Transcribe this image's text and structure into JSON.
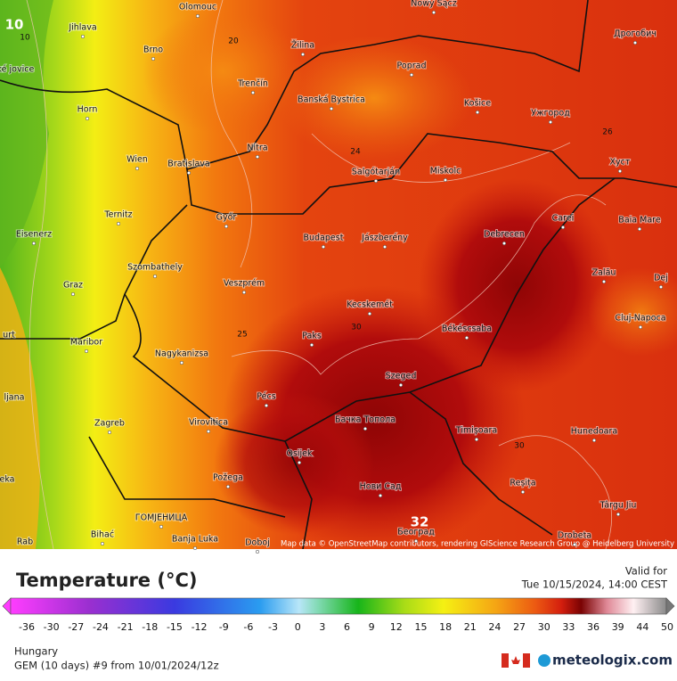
{
  "map": {
    "cities": [
      "Olomouc",
      "Nowy Sącz",
      "Jihlava",
      "Brno",
      "Žilina",
      "Poprad",
      "Дрогобич",
      "Trenčín",
      "Banská Bystrica",
      "Košice",
      "Ужгород",
      "Horn",
      "Wien",
      "Bratislava",
      "Nitra",
      "Salgótarján",
      "Miskolc",
      "Хуст",
      "Ternitz",
      "Győr",
      "Carei",
      "Baia Mare",
      "Eisenerz",
      "Budapest",
      "Jászberény",
      "Debrecen",
      "Szombathely",
      "Zalău",
      "Graz",
      "Veszprém",
      "Dej",
      "Kecskemét",
      "Cluj-Napoca",
      "Maribor",
      "Paks",
      "Békéscsaba",
      "Nagykanizsa",
      "Szeged",
      "Pécs",
      "Бачка Топола",
      "Zagreb",
      "Virovitica",
      "Timișoara",
      "Hunedoara",
      "Osijek",
      "Reșița",
      "Požega",
      "Нови Сад",
      "Târgu Jiu",
      "ГОМЈЕНИЦА",
      "Београд",
      "Bihać",
      "Banja Luka",
      "Doboj",
      "Drobeta",
      "eské jovice",
      "urt",
      "ljana",
      "eka",
      "Rab"
    ],
    "contour_labels": [
      10,
      10,
      20,
      24,
      26,
      25,
      30,
      30,
      32
    ],
    "attribution": "Map data © OpenStreetMap contributors, rendering GIScience Research Group @ Heidelberg University"
  },
  "legend": {
    "title": "Temperature (°C)",
    "valid_label": "Valid for",
    "valid_time": "Tue 10/15/2024, 14:00 CEST",
    "ticks": [
      -36,
      -30,
      -27,
      -24,
      -21,
      -18,
      -15,
      -12,
      -9,
      -6,
      -3,
      0,
      3,
      6,
      9,
      12,
      15,
      18,
      21,
      24,
      27,
      30,
      33,
      36,
      39,
      44,
      50
    ]
  },
  "footer": {
    "region": "Hungary",
    "model": "GEM (10 days) #9 from  10/01/2024/12z",
    "brand": "meteologix.com"
  }
}
